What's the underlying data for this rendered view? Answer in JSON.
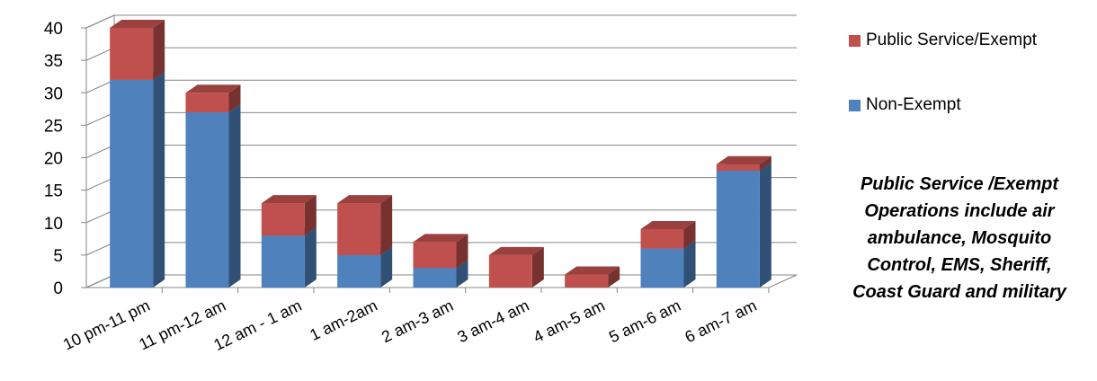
{
  "chart_data": {
    "type": "bar",
    "stacked": true,
    "three_d": true,
    "categories": [
      "10 pm-11 pm",
      "11 pm-12 am",
      "12 am - 1 am",
      "1 am-2am",
      "2 am-3 am",
      "3 am-4 am",
      "4 am-5 am",
      "5 am-6 am",
      "6 am-7 am"
    ],
    "series": [
      {
        "name": "Non-Exempt",
        "color": "#4F81BD",
        "values": [
          32,
          27,
          8,
          5,
          3,
          0,
          0,
          6,
          18
        ]
      },
      {
        "name": "Public Service/Exempt",
        "color": "#C0504D",
        "values": [
          8,
          3,
          5,
          8,
          4,
          5,
          2,
          3,
          1
        ]
      }
    ],
    "ylim": [
      0,
      40
    ],
    "yticks": [
      0,
      5,
      10,
      15,
      20,
      25,
      30,
      35,
      40
    ],
    "grid": true,
    "legend_position": "right",
    "legend_order": [
      "Public Service/Exempt",
      "Non-Exempt"
    ],
    "title": "",
    "xlabel": "",
    "ylabel": ""
  },
  "note": {
    "lines": [
      "Public Service /Exempt",
      "Operations include air",
      "ambulance, Mosquito",
      "Control, EMS, Sheriff,",
      "Coast Guard and military"
    ]
  }
}
